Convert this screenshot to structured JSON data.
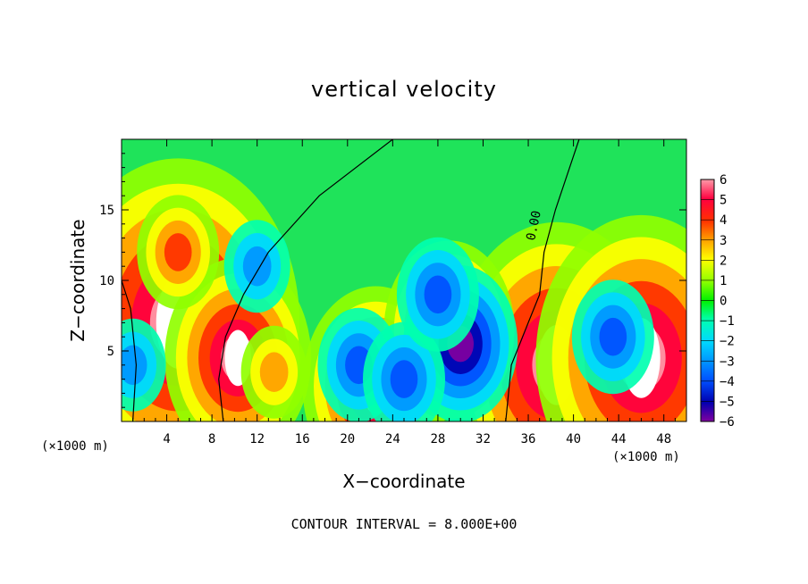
{
  "chart_data": {
    "type": "heatmap",
    "title": "vertical velocity",
    "xlabel": "X−coordinate",
    "ylabel": "Z−coordinate",
    "x_unit_left": "(×1000 m)",
    "x_unit_right": "(×1000 m)",
    "xlim": [
      0,
      50
    ],
    "ylim": [
      0,
      20
    ],
    "x_ticks": [
      4,
      8,
      12,
      16,
      20,
      24,
      28,
      32,
      36,
      40,
      44,
      48
    ],
    "y_ticks": [
      5,
      10,
      15
    ],
    "contour_label": "0.00",
    "footer": "CONTOUR INTERVAL = 8.000E+00",
    "colorbar": {
      "min": -6,
      "max": 6,
      "ticks": [
        "6",
        "5",
        "4",
        "3",
        "2",
        "1",
        "0",
        "−1",
        "−2",
        "−3",
        "−4",
        "−5",
        "−6"
      ]
    },
    "features": [
      {
        "x": 5,
        "z": 7,
        "w": 14,
        "kind": "updraft"
      },
      {
        "x": 38.5,
        "z": 4,
        "w": 12,
        "kind": "updraft"
      },
      {
        "x": 46,
        "z": 4.5,
        "w": 12,
        "kind": "updraft"
      },
      {
        "x": 10.3,
        "z": 4.5,
        "w": 8,
        "kind": "updraft"
      },
      {
        "x": 22.5,
        "z": 2.5,
        "w": 8,
        "kind": "updraft"
      },
      {
        "x": 29,
        "z": 6.5,
        "w": 7,
        "kind": "updraft"
      },
      {
        "x": 13.5,
        "z": 3.5,
        "w": 3,
        "kind": "updraft"
      },
      {
        "x": 5,
        "z": 12,
        "w": 4,
        "kind": "updraft"
      },
      {
        "x": 30,
        "z": 5.5,
        "w": -6,
        "kind": "downdraft"
      },
      {
        "x": 12,
        "z": 11,
        "w": -3,
        "kind": "downdraft"
      },
      {
        "x": 21,
        "z": 4,
        "w": -4,
        "kind": "downdraft"
      },
      {
        "x": 25,
        "z": 3,
        "w": -4,
        "kind": "downdraft"
      },
      {
        "x": 28,
        "z": 9,
        "w": -4,
        "kind": "downdraft"
      },
      {
        "x": 43.5,
        "z": 6,
        "w": -4,
        "kind": "downdraft"
      },
      {
        "x": 1,
        "z": 4,
        "w": -3,
        "kind": "downdraft"
      }
    ]
  }
}
